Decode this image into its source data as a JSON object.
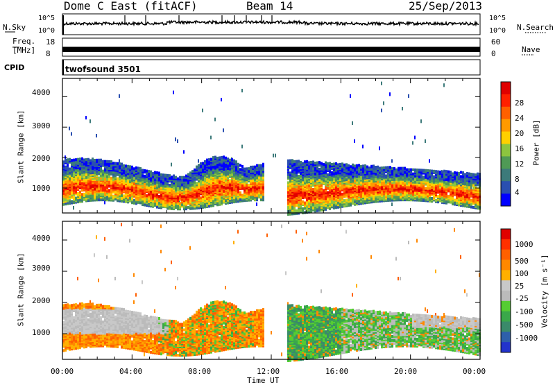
{
  "header": {
    "station": "Dome C East (fitACF)",
    "beam": "Beam 14",
    "date": "25/Sep/2013"
  },
  "nsky_panel": {
    "label": "N.Sky",
    "right_label": "N.Search",
    "ticks_left": [
      "10^5",
      "10^0"
    ],
    "ticks_right": [
      "10^5",
      "10^0"
    ]
  },
  "freq_panel": {
    "label_line1": "Freq.",
    "label_line2": "[MHz]",
    "ticks_left": [
      "18",
      "8"
    ],
    "right_label": "Nave",
    "ticks_right": [
      "60",
      "0"
    ]
  },
  "cpid_panel": {
    "label": "CPID",
    "program": "twofsound 3501"
  },
  "power_panel": {
    "ylabel": "Slant Range [km]",
    "yticks": [
      "4000",
      "3000",
      "2000",
      "1000"
    ],
    "colorbar_label": "Power [dB]",
    "colorbar_ticks": [
      "28",
      "24",
      "20",
      "16",
      "12",
      "8",
      "4"
    ],
    "colors": [
      "#0000ff",
      "#2a4fb0",
      "#3c7a7a",
      "#4f9a55",
      "#8cc53f",
      "#ffd000",
      "#ff9a00",
      "#ff6000",
      "#ff2000",
      "#e00000"
    ]
  },
  "velocity_panel": {
    "ylabel": "Slant Range [km]",
    "yticks": [
      "4000",
      "3000",
      "2000",
      "1000"
    ],
    "colorbar_label": "Velocity [m s⁻¹]",
    "colorbar_ticks": [
      "1000",
      "500",
      "100",
      "25",
      "-25",
      "-100",
      "-500",
      "-1000"
    ],
    "colors": [
      "#2233cc",
      "#2e5faa",
      "#3a8a6a",
      "#3aa84a",
      "#55cc33",
      "#bbbbbb",
      "#c8c8c8",
      "#ffb000",
      "#ff8800",
      "#ff6000",
      "#ff3000",
      "#e00000"
    ]
  },
  "xaxis": {
    "ticks": [
      "00:00",
      "04:00",
      "08:00",
      "12:00",
      "16:00",
      "20:00",
      "00:00"
    ],
    "label": "Time UT"
  },
  "chart_data": {
    "type": "heatmap",
    "title": "Dome C East (fitACF) Beam 14 25/Sep/2013",
    "xlabel": "Time UT",
    "ylabel": "Slant Range [km]",
    "xlim_hours": [
      0,
      24
    ],
    "ylim_km": [
      180,
      4600
    ],
    "series": [
      {
        "name": "Power [dB]",
        "clim": [
          0,
          30
        ]
      },
      {
        "name": "Velocity [m s-1]",
        "clim": [
          -1000,
          1000
        ]
      }
    ],
    "freq_mhz_range": [
      8,
      18
    ],
    "nave_range": [
      0,
      60
    ]
  }
}
